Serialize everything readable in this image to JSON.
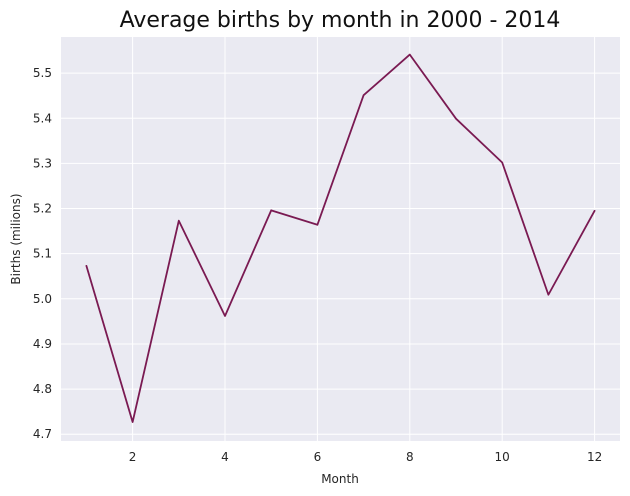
{
  "chart_data": {
    "type": "line",
    "title": "Average births by month in 2000 - 2014",
    "xlabel": "Month",
    "ylabel": "Births (milions)",
    "xlim": [
      0.45,
      12.55
    ],
    "ylim": [
      4.685,
      5.58
    ],
    "xticks": [
      2,
      4,
      6,
      8,
      10,
      12
    ],
    "yticks": [
      4.7,
      4.8,
      4.9,
      5.0,
      5.1,
      5.2,
      5.3,
      5.4,
      5.5
    ],
    "ytick_labels": [
      "4.7",
      "4.8",
      "4.9",
      "5.0",
      "5.1",
      "5.2",
      "5.3",
      "5.4",
      "5.5"
    ],
    "grid": true,
    "series": [
      {
        "color": "#7a1a52",
        "x": [
          1,
          2,
          3,
          4,
          5,
          6,
          7,
          8,
          9,
          10,
          11,
          12
        ],
        "values": [
          5.073,
          4.727,
          5.173,
          4.962,
          5.196,
          5.164,
          5.451,
          5.541,
          5.399,
          5.302,
          5.009,
          5.195
        ]
      }
    ],
    "colors": {
      "plot_background": "#eaeaf2",
      "grid": "#ffffff",
      "line": "#7a1a52"
    }
  }
}
